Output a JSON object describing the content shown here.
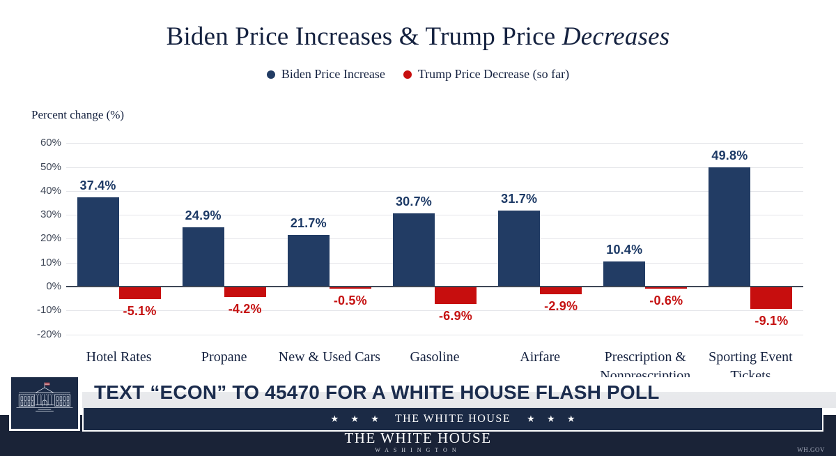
{
  "title": {
    "normal": "Biden Price Increases & Trump Price ",
    "italic": "Decreases"
  },
  "legend": [
    {
      "label": "Biden Price Increase",
      "color": "#223C64"
    },
    {
      "label": "Trump Price Decrease (so far)",
      "color": "#C70E0E"
    }
  ],
  "chart_data": {
    "type": "bar",
    "categories": [
      "Hotel Rates",
      "Propane",
      "New & Used Cars",
      "Gasoline",
      "Airfare",
      "Prescription & Nonprescription Drugs",
      "Sporting Event Tickets"
    ],
    "series": [
      {
        "name": "Biden Price Increase",
        "color": "#223C64",
        "values": [
          37.4,
          24.9,
          21.7,
          30.7,
          31.7,
          10.4,
          49.8
        ]
      },
      {
        "name": "Trump Price Decrease (so far)",
        "color": "#C70E0E",
        "values": [
          -5.1,
          -4.2,
          -0.5,
          -6.9,
          -2.9,
          -0.6,
          -9.1
        ]
      }
    ],
    "title": "Biden Price Increases & Trump Price Decreases",
    "xlabel": "",
    "ylabel": "Percent change (%)",
    "ylim": [
      -20,
      60
    ],
    "yticks": [
      60,
      50,
      40,
      30,
      20,
      10,
      0,
      -10,
      -20
    ],
    "grid": true,
    "legend_position": "top"
  },
  "banner": {
    "text": "TEXT “ECON” TO 45470 FOR A WHITE HOUSE FLASH POLL"
  },
  "star_bar": {
    "stars_left": "★ ★ ★",
    "text": "THE WHITE HOUSE",
    "stars_right": "★ ★ ★"
  },
  "footer": {
    "wordmark": "THE WHITE HOUSE",
    "sub": "WASHINGTON",
    "site": "WH.GOV"
  },
  "icons": {
    "logo": "white-house-facade-icon"
  },
  "colors": {
    "navy": "#14213F",
    "bar_blue": "#223C64",
    "bar_red": "#C70E0E",
    "label_blue": "#1D3A66",
    "label_red": "#C51212",
    "grid": "#E4E5E9",
    "zero_line": "#3E4756",
    "tick": "#3E4656",
    "footer_bg": "#1A2337",
    "panel_navy": "#1B2A45",
    "banner_text": "#1B2C4D"
  }
}
